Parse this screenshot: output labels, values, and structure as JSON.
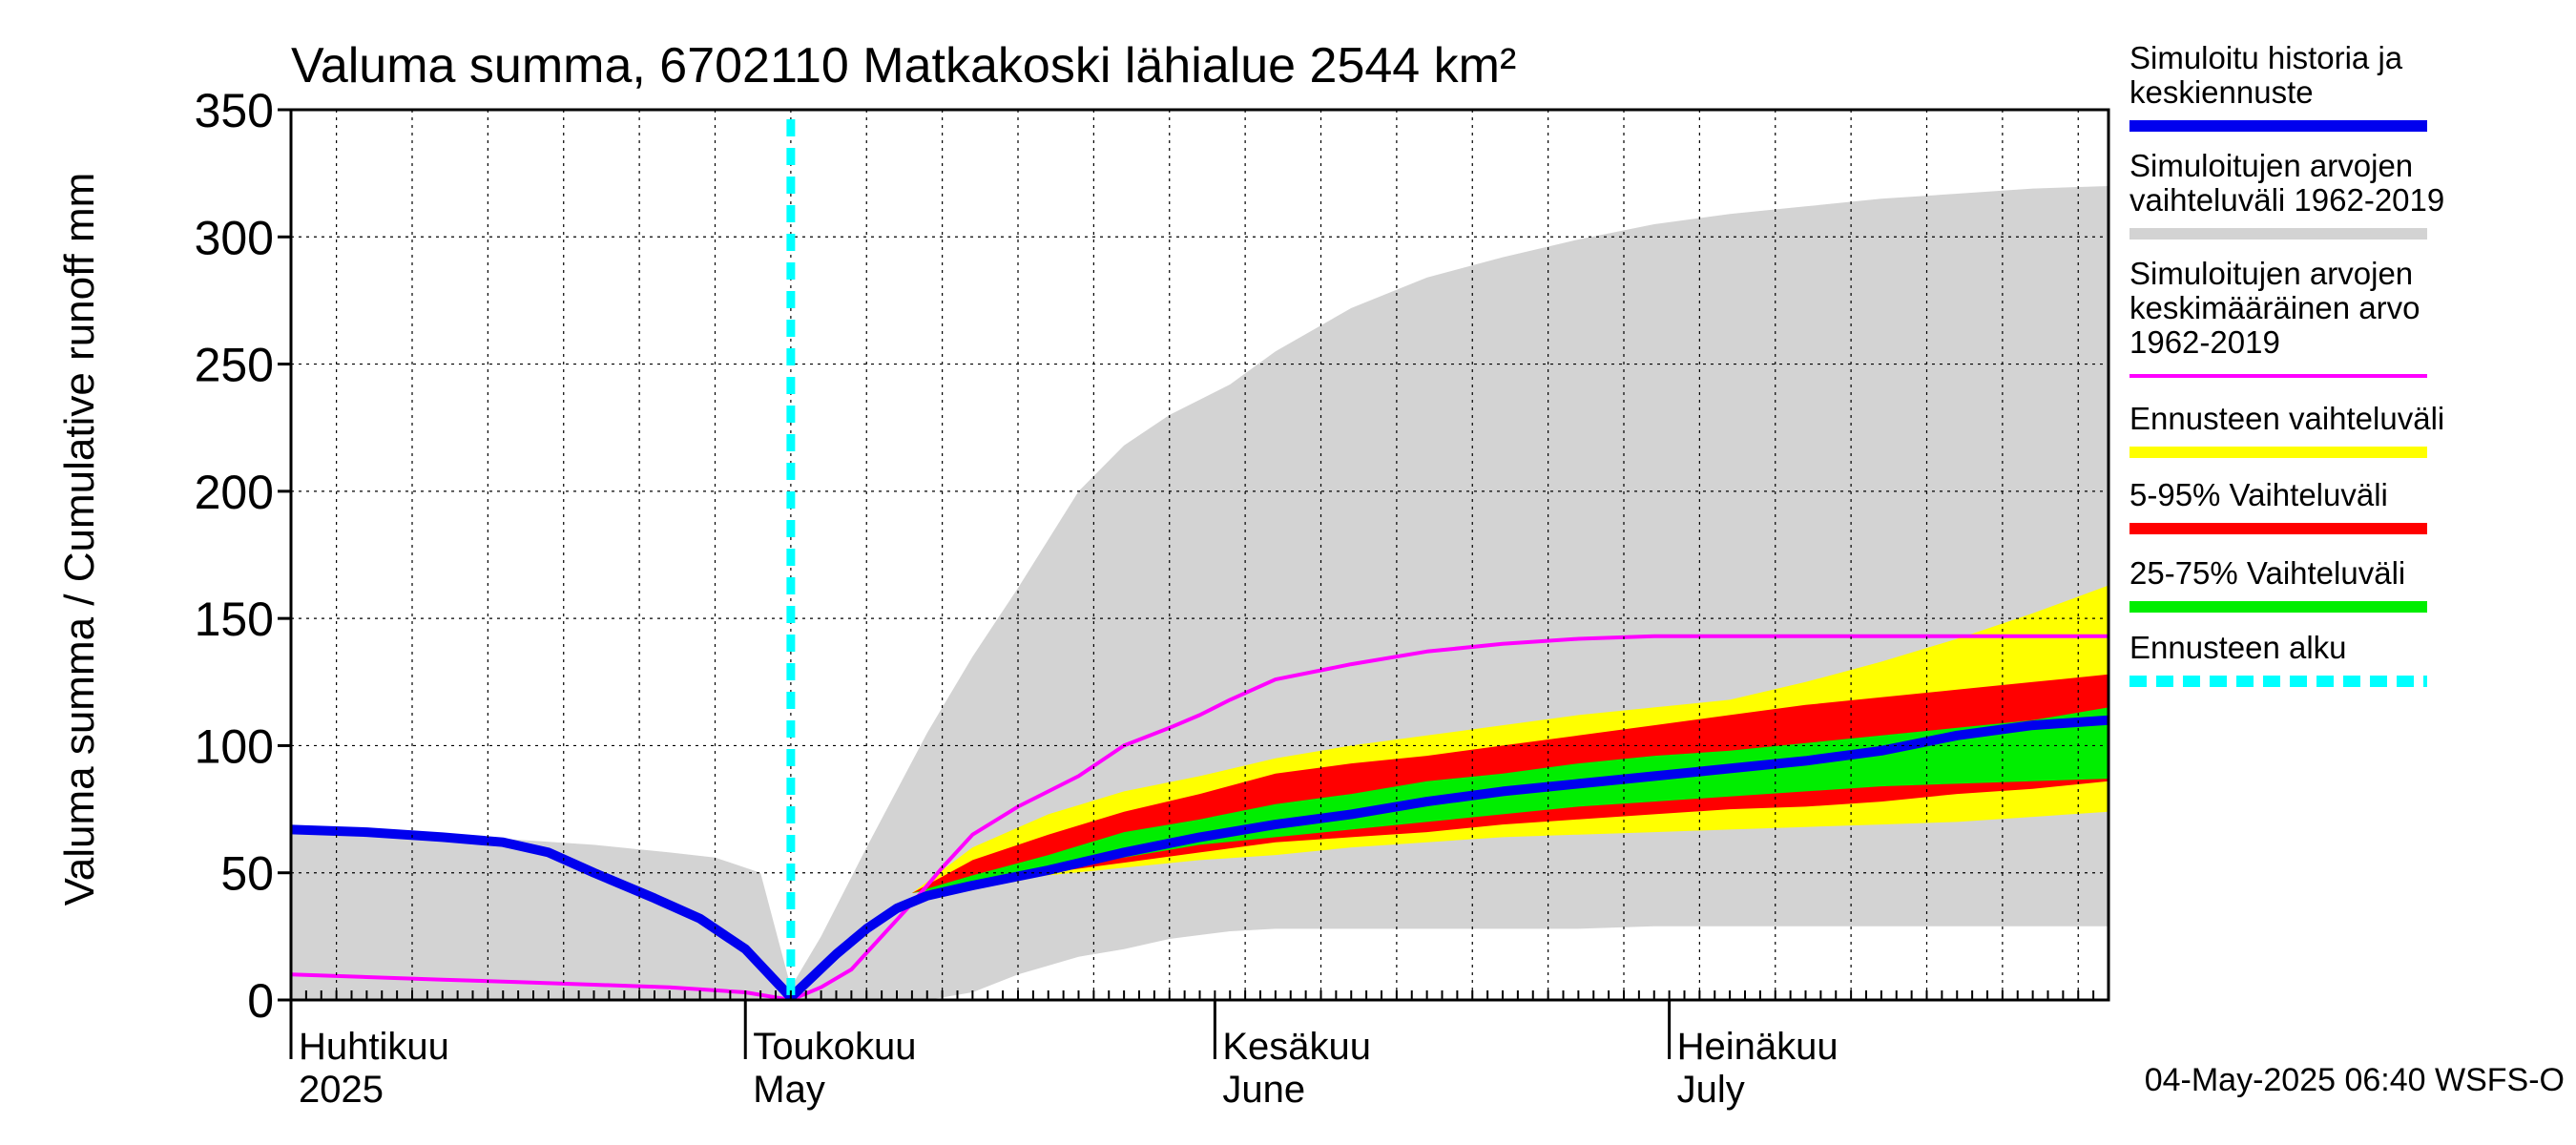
{
  "chart_data": {
    "type": "area",
    "title": "Valuma summa, 6702110 Matkakoski lähialue 2544 km²",
    "ylabel": "Valuma summa / Cumulative runoff    mm",
    "xlabel": "",
    "ylim": [
      0,
      350
    ],
    "yticks": [
      "0",
      "50",
      "100",
      "150",
      "200",
      "250",
      "300",
      "350"
    ],
    "month_labels": [
      {
        "fi": "Huhtikuu",
        "en": "2025",
        "day": 0
      },
      {
        "fi": "Toukokuu",
        "en": "May",
        "day": 30
      },
      {
        "fi": "Kesäkuu",
        "en": "June",
        "day": 61
      },
      {
        "fi": "Heinäkuu",
        "en": "July",
        "day": 91
      }
    ],
    "x_range_days": [
      0,
      120
    ],
    "forecast_start_day": 33,
    "grid": true,
    "timestamp": "04-May-2025 06:40 WSFS-O",
    "series": [
      {
        "name": "Simuloitujen arvojen vaihteluväli 1962-2019",
        "kind": "band",
        "color": "#d3d3d3",
        "x": [
          0,
          5,
          10,
          15,
          20,
          25,
          28,
          31,
          33,
          35,
          38,
          42,
          45,
          48,
          52,
          55,
          58,
          62,
          65,
          70,
          75,
          80,
          85,
          90,
          95,
          100,
          105,
          110,
          115,
          120
        ],
        "lower": [
          0,
          0,
          0,
          0,
          0,
          0,
          0,
          0,
          0,
          0,
          0,
          0,
          3,
          10,
          17,
          20,
          24,
          27,
          28,
          28,
          28,
          28,
          28,
          29,
          29,
          29,
          29,
          29,
          29,
          29
        ],
        "upper": [
          69,
          67,
          65,
          63,
          61,
          58,
          56,
          50,
          5,
          25,
          60,
          105,
          135,
          162,
          200,
          218,
          230,
          242,
          255,
          272,
          284,
          292,
          299,
          305,
          309,
          312,
          315,
          317,
          319,
          320
        ]
      },
      {
        "name": "Ennusteen vaihteluväli",
        "kind": "band",
        "color": "#ffff00",
        "x": [
          41,
          45,
          50,
          55,
          60,
          65,
          70,
          75,
          80,
          85,
          90,
          95,
          100,
          105,
          110,
          115,
          120
        ],
        "lower": [
          42,
          45,
          49,
          52,
          55,
          57,
          60,
          62,
          64,
          65,
          66,
          67,
          68,
          69,
          70,
          72,
          74
        ],
        "upper": [
          42,
          60,
          73,
          82,
          88,
          95,
          100,
          104,
          108,
          112,
          115,
          118,
          125,
          133,
          142,
          152,
          163
        ]
      },
      {
        "name": "5-95% Vaihteluväli",
        "kind": "band",
        "color": "#ff0000",
        "x": [
          41,
          45,
          50,
          55,
          60,
          65,
          70,
          75,
          80,
          85,
          90,
          95,
          100,
          105,
          110,
          115,
          120
        ],
        "lower": [
          42,
          46,
          50,
          54,
          58,
          62,
          64,
          66,
          69,
          71,
          73,
          75,
          76,
          78,
          81,
          83,
          86
        ],
        "upper": [
          42,
          55,
          65,
          74,
          81,
          89,
          93,
          96,
          100,
          104,
          108,
          112,
          116,
          119,
          122,
          125,
          128
        ]
      },
      {
        "name": "25-75% Vaihteluväli",
        "kind": "band",
        "color": "#00ee00",
        "x": [
          41,
          45,
          50,
          55,
          60,
          65,
          70,
          75,
          80,
          85,
          90,
          95,
          100,
          105,
          110,
          115,
          120
        ],
        "lower": [
          42,
          46,
          52,
          56,
          61,
          64,
          67,
          70,
          73,
          76,
          78,
          80,
          82,
          84,
          85,
          86,
          87
        ],
        "upper": [
          42,
          49,
          57,
          66,
          71,
          77,
          81,
          86,
          89,
          93,
          96,
          98,
          101,
          104,
          107,
          110,
          115
        ]
      },
      {
        "name": "Simuloitujen arvojen keskimääräinen arvo 1962-2019",
        "kind": "line",
        "color": "#ff00ff",
        "x": [
          0,
          5,
          10,
          15,
          20,
          25,
          30,
          33,
          35,
          37,
          39,
          41,
          43,
          45,
          48,
          50,
          52,
          55,
          58,
          60,
          62,
          65,
          70,
          75,
          80,
          85,
          90,
          95,
          100,
          110,
          120
        ],
        "values": [
          10,
          9,
          8,
          7,
          6,
          5,
          3,
          0,
          5,
          12,
          25,
          38,
          52,
          65,
          76,
          82,
          88,
          100,
          107,
          112,
          118,
          126,
          132,
          137,
          140,
          142,
          143,
          143,
          143,
          143,
          143
        ]
      },
      {
        "name": "Simuloitu historia ja keskiennuste",
        "kind": "line",
        "color": "#0000ee",
        "x": [
          0,
          5,
          10,
          14,
          17,
          20,
          24,
          27,
          30,
          33,
          36,
          38,
          40,
          42,
          45,
          50,
          55,
          60,
          65,
          70,
          75,
          80,
          85,
          90,
          95,
          100,
          105,
          110,
          115,
          120
        ],
        "values": [
          67,
          66,
          64,
          62,
          58,
          50,
          40,
          32,
          20,
          1,
          18,
          28,
          36,
          41,
          45,
          51,
          58,
          64,
          69,
          73,
          78,
          82,
          85,
          88,
          91,
          94,
          98,
          104,
          108,
          110
        ]
      }
    ],
    "legend": [
      {
        "label": "Simuloitu historia ja keskiennuste",
        "color": "#0000ee",
        "style": "solid"
      },
      {
        "label": "Simuloitujen arvojen vaihteluväli 1962-2019",
        "color": "#d3d3d3",
        "style": "solid"
      },
      {
        "label": "Simuloitujen arvojen keskimääräinen arvo 1962-2019",
        "color": "#ff00ff",
        "style": "thin"
      },
      {
        "label": "Ennusteen vaihteluväli",
        "color": "#ffff00",
        "style": "solid"
      },
      {
        "label": "5-95% Vaihteluväli",
        "color": "#ff0000",
        "style": "solid"
      },
      {
        "label": "25-75% Vaihteluväli",
        "color": "#00ee00",
        "style": "solid"
      },
      {
        "label": "Ennusteen alku",
        "color": "#00ffff",
        "style": "dashed"
      }
    ]
  }
}
